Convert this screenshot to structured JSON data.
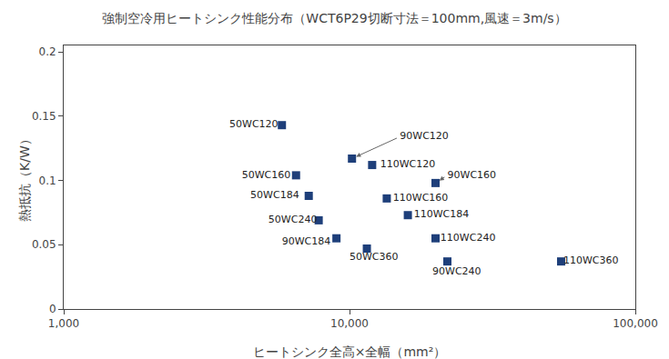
{
  "chart_data": {
    "type": "scatter",
    "title": "強制空冷用ヒートシンク性能分布（WCT6P29切断寸法＝100mm,風速＝3m/s）",
    "x_label": "ヒートシンク全高×全幅（mm²）",
    "y_label": "熱抵抗（K/W）",
    "log": "x",
    "grid": false,
    "color": "#1e3f7a",
    "marker": "square",
    "x": [
      5800,
      10200,
      12000,
      20000,
      6500,
      7200,
      13500,
      7800,
      16000,
      9000,
      11500,
      20000,
      22000,
      55000
    ],
    "values": [
      0.143,
      0.117,
      0.112,
      0.098,
      0.104,
      0.088,
      0.086,
      0.069,
      0.073,
      0.055,
      0.047,
      0.055,
      0.037,
      0.037
    ],
    "annotations": [
      {
        "text": "50WC120",
        "x": 5800,
        "y": 0.143,
        "text_x": 3800,
        "text_y": 0.143,
        "arrow": false
      },
      {
        "text": "90WC120",
        "x": 10200,
        "y": 0.117,
        "text_x": 15000,
        "text_y": 0.134,
        "arrow": true
      },
      {
        "text": "110WC120",
        "x": 12000,
        "y": 0.112,
        "text_x": 12800,
        "text_y": 0.112,
        "arrow": false
      },
      {
        "text": "90WC160",
        "x": 20000,
        "y": 0.098,
        "text_x": 22000,
        "text_y": 0.104,
        "arrow": true
      },
      {
        "text": "50WC160",
        "x": 6500,
        "y": 0.104,
        "text_x": 4200,
        "text_y": 0.104,
        "arrow": false
      },
      {
        "text": "50WC184",
        "x": 7200,
        "y": 0.088,
        "text_x": 4500,
        "text_y": 0.088,
        "arrow": false
      },
      {
        "text": "110WC160",
        "x": 13500,
        "y": 0.086,
        "text_x": 14200,
        "text_y": 0.086,
        "arrow": false
      },
      {
        "text": "50WC240",
        "x": 7800,
        "y": 0.069,
        "text_x": 5200,
        "text_y": 0.069,
        "arrow": false
      },
      {
        "text": "110WC184",
        "x": 16000,
        "y": 0.073,
        "text_x": 16800,
        "text_y": 0.073,
        "arrow": false
      },
      {
        "text": "90WC184",
        "x": 9000,
        "y": 0.055,
        "text_x": 5800,
        "text_y": 0.052,
        "arrow": false
      },
      {
        "text": "50WC360",
        "x": 11500,
        "y": 0.047,
        "text_x": 10000,
        "text_y": 0.04,
        "arrow": false
      },
      {
        "text": "110WC240",
        "x": 20000,
        "y": 0.055,
        "text_x": 20800,
        "text_y": 0.055,
        "arrow": false
      },
      {
        "text": "90WC240",
        "x": 22000,
        "y": 0.037,
        "text_x": 19500,
        "text_y": 0.029,
        "arrow": false
      },
      {
        "text": "110WC360",
        "x": 55000,
        "y": 0.037,
        "text_x": 56000,
        "text_y": 0.037,
        "arrow": false
      }
    ],
    "xlim": [
      1000,
      100000
    ],
    "ylim": [
      0.0,
      0.205
    ],
    "xticks": [
      {
        "value": 1000,
        "label": "1,000"
      },
      {
        "value": 10000,
        "label": "10,000"
      },
      {
        "value": 100000,
        "label": "100,000"
      }
    ],
    "yticks": [
      0.0,
      0.05,
      0.1,
      0.15,
      0.2
    ]
  }
}
